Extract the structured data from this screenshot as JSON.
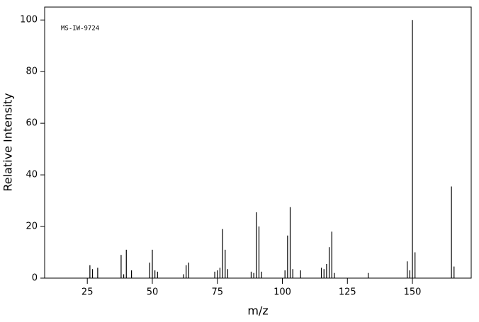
{
  "chart_data": {
    "type": "stem",
    "annotation": "MS-IW-9724",
    "x_label": "m/z",
    "y_label": "Relative Intensity",
    "x": [
      26,
      27,
      29,
      38,
      39,
      40,
      42,
      49,
      50,
      51,
      52,
      62,
      63,
      64,
      74,
      75,
      76,
      77,
      78,
      79,
      88,
      89,
      90,
      91,
      92,
      101,
      102,
      103,
      104,
      107,
      115,
      116,
      117,
      118,
      119,
      120,
      133,
      148,
      149,
      150,
      151,
      165,
      166
    ],
    "values": [
      5,
      3.5,
      4,
      9,
      1.5,
      11,
      3,
      6,
      11,
      3,
      2.5,
      1.5,
      5,
      6,
      2.5,
      3,
      4,
      19,
      11,
      3.5,
      2.5,
      2,
      25.5,
      20,
      2.5,
      3,
      16.5,
      27.5,
      3.5,
      3,
      4,
      3.5,
      5.5,
      12,
      18,
      2,
      2,
      6.5,
      3,
      100,
      10,
      35.5,
      4.5
    ],
    "color": "#000000",
    "xlim": [
      8.6,
      172.6
    ],
    "ylim": [
      0,
      105
    ],
    "xticks": [
      25,
      50,
      75,
      100,
      125,
      150
    ],
    "yticks": [
      0,
      20,
      40,
      60,
      80,
      100
    ]
  }
}
